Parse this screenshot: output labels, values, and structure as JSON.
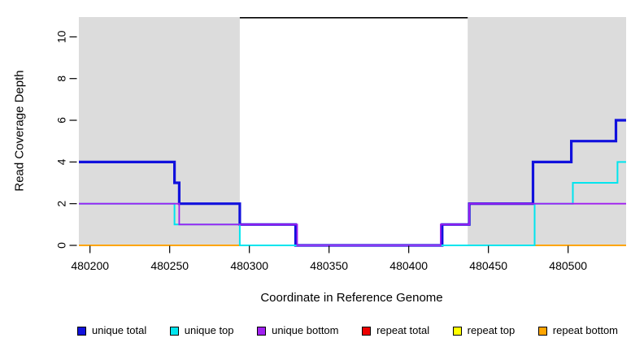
{
  "chart_data": {
    "type": "line",
    "subtype": "step-coverage-plot",
    "title": "",
    "xlabel": "Coordinate in Reference Genome",
    "ylabel": "Read Coverage Depth",
    "xlim": [
      480192,
      480536.4
    ],
    "ylim": [
      0,
      10.95
    ],
    "x_ticks": [
      480200,
      480250,
      480300,
      480350,
      480400,
      480450,
      480500
    ],
    "y_ticks": [
      0,
      2,
      4,
      6,
      8,
      10
    ],
    "grid": false,
    "colors": {
      "background": "#ffffff",
      "shaded_region": "#DCDCDC",
      "axis": "#000000"
    },
    "background_regions": [
      {
        "name": "repeat-region-left",
        "from": 480193,
        "to": 480294,
        "color": "#DCDCDC"
      },
      {
        "name": "repeat-region-right",
        "from": 480437,
        "to": 480536.4,
        "color": "#DCDCDC"
      }
    ],
    "top_segment": {
      "from": 480294,
      "to": 480437,
      "y": 10.95,
      "color": "#000000"
    },
    "draw_order": [
      "repeat total",
      "repeat top",
      "repeat bottom",
      "unique total",
      "unique top",
      "unique bottom"
    ],
    "series": [
      {
        "name": "unique total",
        "color": "#1111DD",
        "line_width": 3.2,
        "points": [
          [
            480193,
            4
          ],
          [
            480253,
            4
          ],
          [
            480253,
            3
          ],
          [
            480256,
            3
          ],
          [
            480256,
            2
          ],
          [
            480294,
            2
          ],
          [
            480294,
            1
          ],
          [
            480329,
            1
          ],
          [
            480329,
            0
          ],
          [
            480421,
            0
          ],
          [
            480421,
            1
          ],
          [
            480438,
            1
          ],
          [
            480438,
            2
          ],
          [
            480478,
            2
          ],
          [
            480478,
            4
          ],
          [
            480502,
            4
          ],
          [
            480502,
            5
          ],
          [
            480530,
            5
          ],
          [
            480530,
            6
          ],
          [
            480536.4,
            6
          ]
        ]
      },
      {
        "name": "unique top",
        "color": "#00E5EE",
        "line_width": 2,
        "points": [
          [
            480193,
            2
          ],
          [
            480253,
            2
          ],
          [
            480253,
            1
          ],
          [
            480294,
            1
          ],
          [
            480294,
            0
          ],
          [
            480479,
            0
          ],
          [
            480479,
            2
          ],
          [
            480503,
            2
          ],
          [
            480503,
            3
          ],
          [
            480531,
            3
          ],
          [
            480531,
            4
          ],
          [
            480536.4,
            4
          ]
        ]
      },
      {
        "name": "unique bottom",
        "color": "#A020F0",
        "line_width": 1.8,
        "points": [
          [
            480193,
            2
          ],
          [
            480256,
            2
          ],
          [
            480256,
            1
          ],
          [
            480330,
            1
          ],
          [
            480330,
            0
          ],
          [
            480420,
            0
          ],
          [
            480420,
            1
          ],
          [
            480438,
            1
          ],
          [
            480438,
            2
          ],
          [
            480536.4,
            2
          ]
        ]
      },
      {
        "name": "repeat total",
        "color": "#EE0000",
        "line_width": 1.4,
        "points": [
          [
            480193,
            0
          ],
          [
            480536.4,
            0
          ]
        ]
      },
      {
        "name": "repeat top",
        "color": "#FFFF00",
        "line_width": 1.4,
        "points": [
          [
            480193,
            0
          ],
          [
            480536.4,
            0
          ]
        ]
      },
      {
        "name": "repeat bottom",
        "color": "#FFA500",
        "line_width": 2,
        "points": [
          [
            480193,
            0
          ],
          [
            480536.4,
            0
          ]
        ]
      }
    ],
    "legend": {
      "position": "bottom",
      "entries": [
        {
          "label": "unique total",
          "color": "#1111DD"
        },
        {
          "label": "unique top",
          "color": "#00E5EE"
        },
        {
          "label": "unique bottom",
          "color": "#A020F0"
        },
        {
          "label": "repeat total",
          "color": "#EE0000"
        },
        {
          "label": "repeat top",
          "color": "#FFFF00"
        },
        {
          "label": "repeat bottom",
          "color": "#FFA500"
        }
      ]
    }
  }
}
